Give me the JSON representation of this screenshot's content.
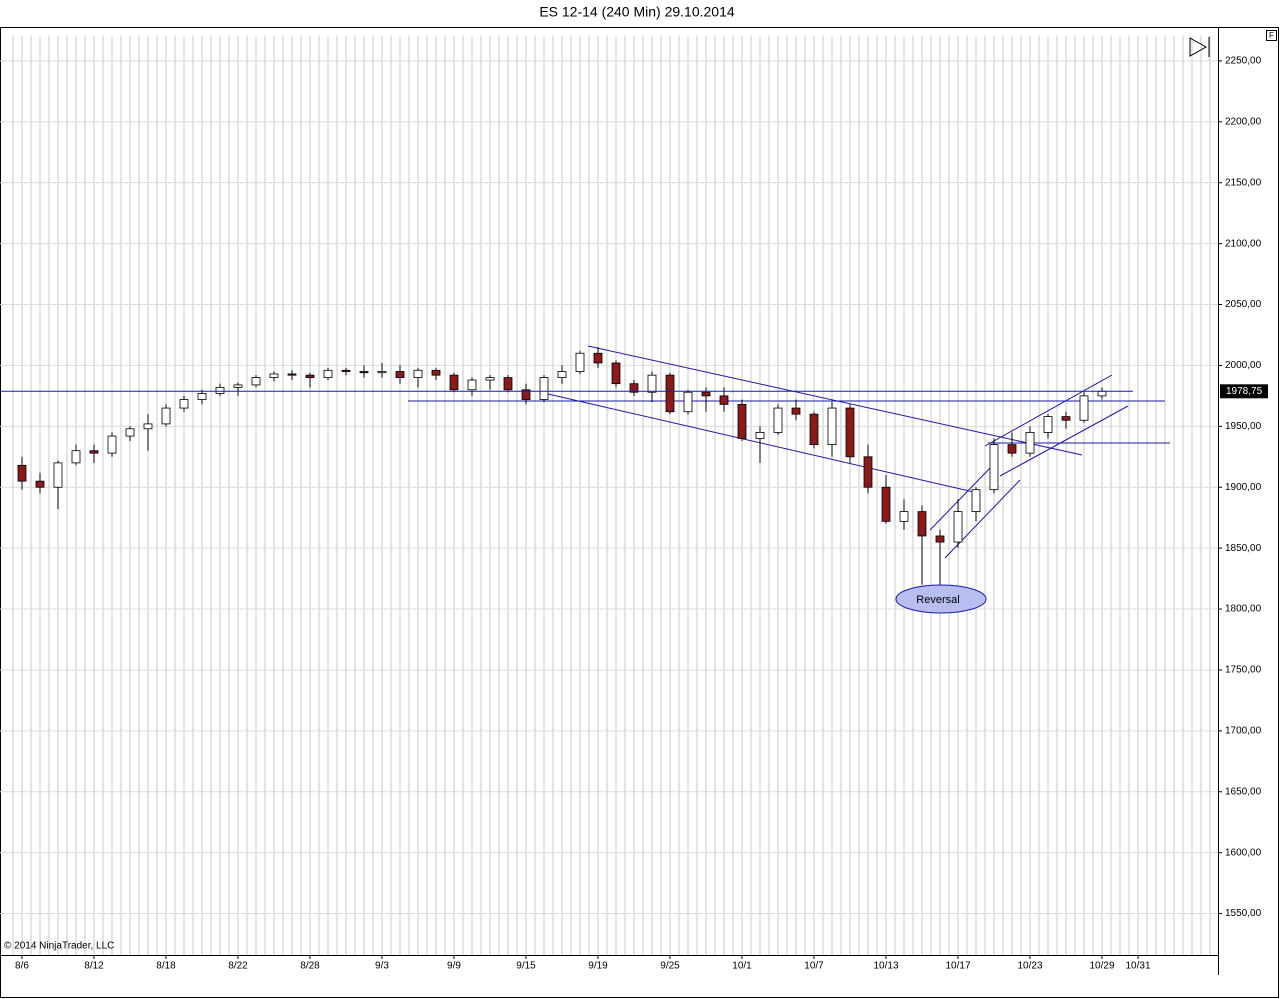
{
  "chart_data": {
    "type": "candlestick",
    "title": "ES 12-14 (240 Min)  29.10.2014",
    "copyright": "© 2014 NinjaTrader, LLC",
    "annotation": "Reversal",
    "panel_button": "F",
    "categories": [
      "8/6",
      null,
      null,
      null,
      "8/12",
      null,
      null,
      null,
      "8/18",
      null,
      null,
      null,
      "8/22",
      null,
      null,
      null,
      "8/28",
      null,
      null,
      null,
      "9/3",
      null,
      null,
      null,
      "9/9",
      null,
      null,
      null,
      "9/15",
      null,
      null,
      null,
      "9/19",
      null,
      null,
      null,
      "9/25",
      null,
      null,
      null,
      "10/1",
      null,
      null,
      null,
      "10/7",
      null,
      null,
      null,
      "10/13",
      null,
      null,
      null,
      "10/17",
      null,
      null,
      null,
      "10/23",
      null,
      null,
      null,
      "10/29",
      null,
      "10/31",
      null,
      null,
      null,
      null
    ],
    "open": [
      1918,
      1905,
      1900,
      1920,
      1930,
      1928,
      1942,
      1948,
      1952,
      1965,
      1972,
      1977,
      1982,
      1984,
      1990,
      1993,
      1992,
      1990,
      1996,
      1995,
      1994,
      1995,
      1990,
      1996,
      1992,
      1980,
      1988,
      1990,
      1980,
      1972,
      1990,
      1995,
      2010,
      2002,
      1985,
      1978,
      1992,
      1962,
      1978,
      1975,
      1968,
      1940,
      1945,
      1965,
      1960,
      1935,
      1965,
      1925,
      1900,
      1872,
      1880,
      1860,
      1855,
      1880,
      1898,
      1935,
      1928,
      1945,
      1958,
      1955,
      1975,
      null,
      null,
      null,
      null,
      null,
      null
    ],
    "high": [
      1925,
      1912,
      1922,
      1935,
      1935,
      1945,
      1950,
      1960,
      1968,
      1975,
      1980,
      1985,
      1986,
      1992,
      1995,
      1996,
      1994,
      1998,
      1998,
      2000,
      2002,
      2000,
      1998,
      1998,
      1994,
      1990,
      1992,
      1992,
      1985,
      1992,
      2000,
      2012,
      2015,
      2004,
      1988,
      1995,
      1994,
      1980,
      1982,
      1982,
      1972,
      1950,
      1968,
      1972,
      1962,
      1970,
      1968,
      1935,
      1910,
      1890,
      1885,
      1865,
      1890,
      1900,
      1940,
      1945,
      1950,
      1960,
      1962,
      1978,
      1982,
      null,
      null,
      null,
      null,
      null,
      null
    ],
    "low": [
      1898,
      1895,
      1882,
      1918,
      1920,
      1925,
      1938,
      1930,
      1950,
      1962,
      1968,
      1975,
      1975,
      1982,
      1987,
      1988,
      1982,
      1988,
      1992,
      1990,
      1990,
      1985,
      1982,
      1988,
      1978,
      1975,
      1980,
      1978,
      1968,
      1970,
      1985,
      1993,
      1998,
      1982,
      1975,
      1970,
      1960,
      1960,
      1962,
      1962,
      1938,
      1920,
      1943,
      1955,
      1932,
      1925,
      1920,
      1895,
      1870,
      1865,
      1820,
      1815,
      1850,
      1872,
      1895,
      1925,
      1925,
      1940,
      1948,
      1953,
      1972,
      null,
      null,
      null,
      null,
      null,
      null
    ],
    "close": [
      1905,
      1900,
      1920,
      1930,
      1928,
      1942,
      1948,
      1952,
      1965,
      1972,
      1977,
      1982,
      1984,
      1990,
      1993,
      1992,
      1990,
      1996,
      1995,
      1994,
      1995,
      1990,
      1996,
      1992,
      1980,
      1988,
      1990,
      1980,
      1972,
      1990,
      1995,
      2010,
      2002,
      1985,
      1978,
      1992,
      1962,
      1978,
      1975,
      1968,
      1940,
      1945,
      1965,
      1960,
      1935,
      1965,
      1925,
      1900,
      1872,
      1880,
      1860,
      1855,
      1880,
      1898,
      1935,
      1928,
      1945,
      1958,
      1955,
      1975,
      1978.75,
      null,
      null,
      null,
      null,
      null,
      null
    ],
    "up_color": "#ffffff",
    "down_color": "#8b1a1a",
    "wick_color": "#000000",
    "last_price": {
      "value": 1978.75,
      "label": "1978,75"
    },
    "ylim": [
      1516,
      2277
    ],
    "yticks": [
      {
        "value": 1550,
        "label": "1550,00"
      },
      {
        "value": 1600,
        "label": "1600,00"
      },
      {
        "value": 1650,
        "label": "1650,00"
      },
      {
        "value": 1700,
        "label": "1700,00"
      },
      {
        "value": 1750,
        "label": "1750,00"
      },
      {
        "value": 1800,
        "label": "1800,00"
      },
      {
        "value": 1850,
        "label": "1850,00"
      },
      {
        "value": 1900,
        "label": "1900,00"
      },
      {
        "value": 1950,
        "label": "1950,00"
      },
      {
        "value": 2000,
        "label": "2000,00"
      },
      {
        "value": 2050,
        "label": "2050,00"
      },
      {
        "value": 2100,
        "label": "2100,00"
      },
      {
        "value": 2150,
        "label": "2150,00"
      },
      {
        "value": 2200,
        "label": "2200,00"
      },
      {
        "value": 2250,
        "label": "2250,00"
      }
    ],
    "grid": true
  }
}
